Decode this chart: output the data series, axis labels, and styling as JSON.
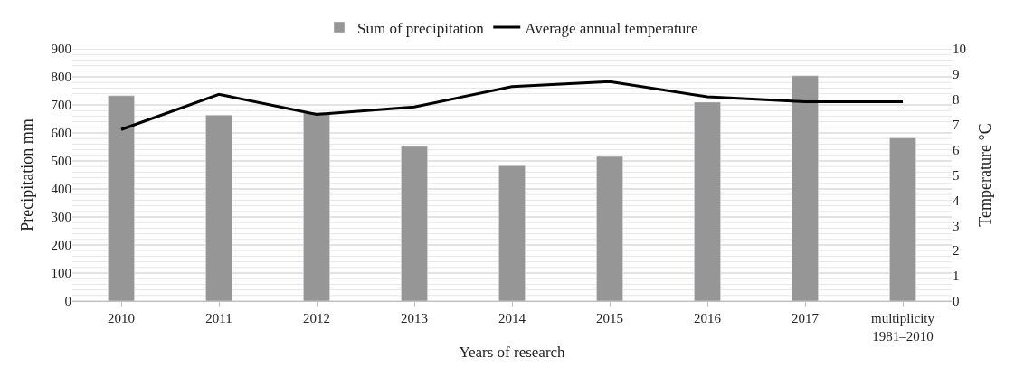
{
  "chart_data": {
    "type": "bar",
    "xlabel": "Years of research",
    "ylabel": "Precipitation mm",
    "y2label": "Temperature °C",
    "categories": [
      "2010",
      "2011",
      "2012",
      "2013",
      "2014",
      "2015",
      "2016",
      "2017",
      "multiplicity\n1981–2010"
    ],
    "series": [
      {
        "name": "Sum of precipitation",
        "color": "#969696",
        "values": [
          733,
          664,
          673,
          552,
          483,
          516,
          710,
          804,
          582
        ]
      },
      {
        "name": "Average annual temperature",
        "type": "line",
        "axis": "y2",
        "color": "#000000",
        "marker": "none",
        "line_style": "solid",
        "values": [
          6.8,
          8.2,
          7.4,
          7.7,
          8.5,
          8.7,
          8.1,
          7.9,
          7.9
        ]
      }
    ],
    "ylim": [
      0,
      900
    ],
    "yticks": [
      0,
      {
        "value": 20,
        "label": null
      },
      {
        "value": 40,
        "label": null
      },
      {
        "value": 60,
        "label": null
      },
      {
        "value": 80,
        "label": null
      },
      100,
      {
        "value": 120,
        "label": null
      },
      {
        "value": 140,
        "label": null
      },
      {
        "value": 160,
        "label": null
      },
      {
        "value": 180,
        "label": null
      },
      200,
      {
        "value": 220,
        "label": null
      },
      {
        "value": 240,
        "label": null
      },
      {
        "value": 260,
        "label": null
      },
      {
        "value": 280,
        "label": null
      },
      300,
      {
        "value": 320,
        "label": null
      },
      {
        "value": 340,
        "label": null
      },
      {
        "value": 360,
        "label": null
      },
      {
        "value": 380,
        "label": null
      },
      400,
      {
        "value": 420,
        "label": null
      },
      {
        "value": 440,
        "label": null
      },
      {
        "value": 460,
        "label": null
      },
      {
        "value": 480,
        "label": null
      },
      500,
      {
        "value": 520,
        "label": null
      },
      {
        "value": 540,
        "label": null
      },
      {
        "value": 560,
        "label": null
      },
      {
        "value": 580,
        "label": null
      },
      600,
      {
        "value": 620,
        "label": null
      },
      {
        "value": 640,
        "label": null
      },
      {
        "value": 660,
        "label": null
      },
      {
        "value": 680,
        "label": null
      },
      700,
      {
        "value": 720,
        "label": null
      },
      {
        "value": 740,
        "label": null
      },
      {
        "value": 760,
        "label": null
      },
      {
        "value": 780,
        "label": null
      },
      800,
      {
        "value": 820,
        "label": null
      },
      {
        "value": 840,
        "label": null
      },
      {
        "value": 860,
        "label": null
      },
      {
        "value": 880,
        "label": null
      },
      900
    ],
    "y2lim": [
      0,
      10
    ],
    "y2ticks": [
      0,
      1,
      2,
      3,
      4,
      5,
      6,
      7,
      8,
      9,
      10
    ],
    "grid": "y",
    "legend": "top"
  }
}
